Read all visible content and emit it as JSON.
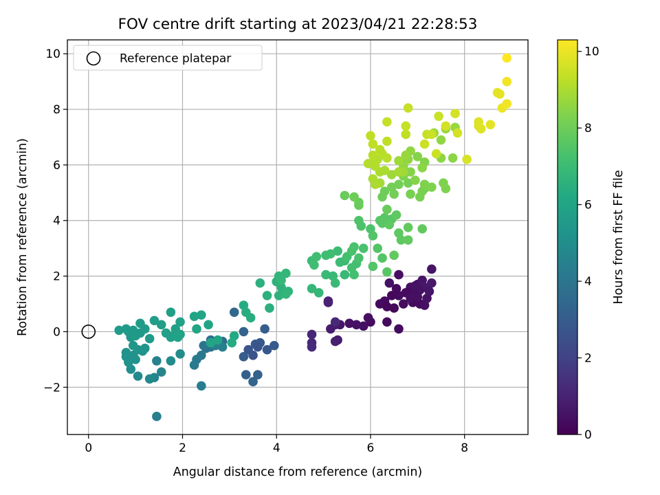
{
  "chart_data": {
    "type": "scatter",
    "title": "FOV centre drift starting at 2023/04/21 22:28:53",
    "xlabel": "Angular distance from reference (arcmin)",
    "ylabel": "Rotation from reference (arcmin)",
    "colorbar_label": "Hours from first FF file",
    "xlim": [
      -0.45,
      9.35
    ],
    "ylim": [
      -3.7,
      10.5
    ],
    "clim": [
      0,
      10.3
    ],
    "x_ticks": [
      0,
      2,
      4,
      6,
      8
    ],
    "y_ticks": [
      -2,
      0,
      2,
      4,
      6,
      8,
      10
    ],
    "colorbar_ticks": [
      0,
      2,
      4,
      6,
      8,
      10
    ],
    "grid": true,
    "colormap": "viridis",
    "legend": {
      "position": "top-left",
      "entries": [
        {
          "label": "Reference platepar",
          "marker": "open-circle"
        }
      ]
    },
    "reference_point": {
      "x": 0,
      "y": 0
    },
    "points": [
      {
        "x": 6.6,
        "y": 2.05,
        "t": 0.4
      },
      {
        "x": 6.4,
        "y": 1.75,
        "t": 0.5
      },
      {
        "x": 6.55,
        "y": 1.55,
        "t": 0.3
      },
      {
        "x": 6.85,
        "y": 1.6,
        "t": 0.4
      },
      {
        "x": 7.0,
        "y": 1.7,
        "t": 0.5
      },
      {
        "x": 7.1,
        "y": 1.85,
        "t": 0.6
      },
      {
        "x": 7.3,
        "y": 2.25,
        "t": 0.6
      },
      {
        "x": 7.3,
        "y": 1.75,
        "t": 0.7
      },
      {
        "x": 7.15,
        "y": 1.6,
        "t": 0.7
      },
      {
        "x": 7.05,
        "y": 1.5,
        "t": 0.5
      },
      {
        "x": 6.9,
        "y": 1.45,
        "t": 0.4
      },
      {
        "x": 6.75,
        "y": 1.4,
        "t": 0.3
      },
      {
        "x": 6.6,
        "y": 1.3,
        "t": 0.3
      },
      {
        "x": 6.45,
        "y": 1.3,
        "t": 0.2
      },
      {
        "x": 6.3,
        "y": 1.1,
        "t": 0.3
      },
      {
        "x": 6.2,
        "y": 1.0,
        "t": 0.3
      },
      {
        "x": 6.35,
        "y": 0.9,
        "t": 0.2
      },
      {
        "x": 6.5,
        "y": 0.85,
        "t": 0.2
      },
      {
        "x": 6.7,
        "y": 1.0,
        "t": 0.3
      },
      {
        "x": 6.9,
        "y": 1.05,
        "t": 0.3
      },
      {
        "x": 7.05,
        "y": 1.0,
        "t": 0.3
      },
      {
        "x": 7.15,
        "y": 0.95,
        "t": 0.4
      },
      {
        "x": 7.2,
        "y": 1.2,
        "t": 0.5
      },
      {
        "x": 7.0,
        "y": 1.25,
        "t": 0.4
      },
      {
        "x": 6.85,
        "y": 1.2,
        "t": 0.4
      },
      {
        "x": 6.95,
        "y": 1.65,
        "t": 0.5
      },
      {
        "x": 7.25,
        "y": 1.45,
        "t": 0.6
      },
      {
        "x": 6.6,
        "y": 0.1,
        "t": 0.3
      },
      {
        "x": 6.35,
        "y": 0.35,
        "t": 0.3
      },
      {
        "x": 6.0,
        "y": 0.35,
        "t": 0.3
      },
      {
        "x": 5.95,
        "y": 0.5,
        "t": 0.4
      },
      {
        "x": 5.85,
        "y": 0.2,
        "t": 0.4
      },
      {
        "x": 5.7,
        "y": 0.25,
        "t": 0.5
      },
      {
        "x": 5.55,
        "y": 0.3,
        "t": 0.5
      },
      {
        "x": 5.35,
        "y": 0.25,
        "t": 0.6
      },
      {
        "x": 5.25,
        "y": 0.25,
        "t": 0.7
      },
      {
        "x": 5.15,
        "y": 0.1,
        "t": 0.8
      },
      {
        "x": 5.3,
        "y": -0.3,
        "t": 0.8
      },
      {
        "x": 5.25,
        "y": -0.35,
        "t": 0.9
      },
      {
        "x": 5.1,
        "y": 1.05,
        "t": 0.9
      },
      {
        "x": 5.1,
        "y": 1.1,
        "t": 1.0
      },
      {
        "x": 4.75,
        "y": -0.1,
        "t": 1.1
      },
      {
        "x": 4.75,
        "y": -0.4,
        "t": 1.2
      },
      {
        "x": 4.75,
        "y": -0.55,
        "t": 1.3
      },
      {
        "x": 5.25,
        "y": 0.35,
        "t": 1.2
      },
      {
        "x": 3.75,
        "y": 0.1,
        "t": 3.0
      },
      {
        "x": 3.65,
        "y": -0.4,
        "t": 2.8
      },
      {
        "x": 3.55,
        "y": -0.45,
        "t": 2.9
      },
      {
        "x": 3.6,
        "y": -0.55,
        "t": 2.7
      },
      {
        "x": 3.5,
        "y": -0.85,
        "t": 2.6
      },
      {
        "x": 3.4,
        "y": -0.65,
        "t": 2.7
      },
      {
        "x": 3.8,
        "y": -0.65,
        "t": 2.8
      },
      {
        "x": 3.95,
        "y": -0.5,
        "t": 2.9
      },
      {
        "x": 3.3,
        "y": -0.9,
        "t": 3.0
      },
      {
        "x": 3.35,
        "y": -1.55,
        "t": 3.1
      },
      {
        "x": 3.6,
        "y": -1.55,
        "t": 3.2
      },
      {
        "x": 3.5,
        "y": -1.8,
        "t": 3.3
      },
      {
        "x": 3.3,
        "y": 0.0,
        "t": 3.3
      },
      {
        "x": 3.1,
        "y": 0.7,
        "t": 3.5
      },
      {
        "x": 2.85,
        "y": -0.35,
        "t": 3.6
      },
      {
        "x": 2.6,
        "y": -0.3,
        "t": 3.8
      },
      {
        "x": 2.6,
        "y": -0.55,
        "t": 3.8
      },
      {
        "x": 2.5,
        "y": -0.6,
        "t": 3.9
      },
      {
        "x": 2.45,
        "y": -0.5,
        "t": 4.0
      },
      {
        "x": 2.4,
        "y": -0.85,
        "t": 4.1
      },
      {
        "x": 2.3,
        "y": -1.0,
        "t": 4.2
      },
      {
        "x": 2.25,
        "y": -1.2,
        "t": 4.2
      },
      {
        "x": 2.4,
        "y": -1.95,
        "t": 4.3
      },
      {
        "x": 1.45,
        "y": -3.05,
        "t": 4.4
      },
      {
        "x": 1.45,
        "y": -1.05,
        "t": 4.5
      },
      {
        "x": 1.55,
        "y": -1.45,
        "t": 4.6
      },
      {
        "x": 1.4,
        "y": -1.65,
        "t": 4.6
      },
      {
        "x": 1.3,
        "y": -1.7,
        "t": 4.8
      },
      {
        "x": 1.05,
        "y": -1.6,
        "t": 4.8
      },
      {
        "x": 1.75,
        "y": -1.05,
        "t": 4.9
      },
      {
        "x": 1.95,
        "y": -0.8,
        "t": 5.0
      },
      {
        "x": 2.7,
        "y": -0.5,
        "t": 4.4
      },
      {
        "x": 2.85,
        "y": -0.55,
        "t": 4.5
      },
      {
        "x": 0.9,
        "y": -1.35,
        "t": 5.1
      },
      {
        "x": 0.85,
        "y": -1.1,
        "t": 5.2
      },
      {
        "x": 0.8,
        "y": -0.9,
        "t": 5.2
      },
      {
        "x": 0.95,
        "y": -0.85,
        "t": 5.2
      },
      {
        "x": 1.05,
        "y": -0.65,
        "t": 5.3
      },
      {
        "x": 1.15,
        "y": -0.7,
        "t": 5.3
      },
      {
        "x": 0.8,
        "y": -0.75,
        "t": 5.2
      },
      {
        "x": 0.95,
        "y": -0.5,
        "t": 5.4
      },
      {
        "x": 0.9,
        "y": -0.2,
        "t": 5.4
      },
      {
        "x": 1.0,
        "y": -0.15,
        "t": 5.5
      },
      {
        "x": 1.1,
        "y": -0.05,
        "t": 5.5
      },
      {
        "x": 0.85,
        "y": 0.0,
        "t": 5.5
      },
      {
        "x": 0.95,
        "y": 0.05,
        "t": 5.5
      },
      {
        "x": 0.8,
        "y": 0.1,
        "t": 5.6
      },
      {
        "x": 0.65,
        "y": 0.05,
        "t": 5.6
      },
      {
        "x": 1.1,
        "y": 0.3,
        "t": 5.6
      },
      {
        "x": 1.2,
        "y": 0.1,
        "t": 5.6
      },
      {
        "x": 1.3,
        "y": -0.25,
        "t": 5.6
      },
      {
        "x": 1.4,
        "y": 0.4,
        "t": 5.7
      },
      {
        "x": 1.55,
        "y": 0.25,
        "t": 5.7
      },
      {
        "x": 1.75,
        "y": 0.7,
        "t": 5.8
      },
      {
        "x": 1.75,
        "y": -0.2,
        "t": 5.8
      },
      {
        "x": 1.8,
        "y": -0.15,
        "t": 5.8
      },
      {
        "x": 1.85,
        "y": 0.1,
        "t": 5.8
      },
      {
        "x": 1.95,
        "y": 0.35,
        "t": 5.9
      },
      {
        "x": 1.95,
        "y": -0.1,
        "t": 5.9
      },
      {
        "x": 1.65,
        "y": -0.05,
        "t": 5.8
      },
      {
        "x": 2.25,
        "y": 0.55,
        "t": 6.0
      },
      {
        "x": 2.4,
        "y": 0.6,
        "t": 6.0
      },
      {
        "x": 2.3,
        "y": 0.1,
        "t": 6.0
      },
      {
        "x": 2.55,
        "y": 0.25,
        "t": 6.0
      },
      {
        "x": 2.6,
        "y": -0.4,
        "t": 6.0
      },
      {
        "x": 2.75,
        "y": -0.3,
        "t": 6.0
      },
      {
        "x": 1.9,
        "y": -0.2,
        "t": 5.9
      },
      {
        "x": 1.2,
        "y": -0.6,
        "t": 5.3
      },
      {
        "x": 1.0,
        "y": -1.0,
        "t": 5.2
      },
      {
        "x": 3.1,
        "y": -0.15,
        "t": 6.2
      },
      {
        "x": 3.05,
        "y": -0.4,
        "t": 6.3
      },
      {
        "x": 3.3,
        "y": 0.95,
        "t": 6.3
      },
      {
        "x": 3.35,
        "y": 0.7,
        "t": 6.4
      },
      {
        "x": 3.45,
        "y": 0.5,
        "t": 6.4
      },
      {
        "x": 3.65,
        "y": 1.75,
        "t": 6.5
      },
      {
        "x": 3.8,
        "y": 1.3,
        "t": 6.5
      },
      {
        "x": 3.85,
        "y": 0.85,
        "t": 6.5
      },
      {
        "x": 4.0,
        "y": 1.8,
        "t": 6.6
      },
      {
        "x": 4.05,
        "y": 1.3,
        "t": 6.6
      },
      {
        "x": 4.1,
        "y": 1.6,
        "t": 6.6
      },
      {
        "x": 4.2,
        "y": 1.35,
        "t": 6.7
      },
      {
        "x": 4.25,
        "y": 1.45,
        "t": 6.7
      },
      {
        "x": 4.05,
        "y": 2.0,
        "t": 6.7
      },
      {
        "x": 4.2,
        "y": 2.1,
        "t": 6.8
      },
      {
        "x": 4.1,
        "y": 1.85,
        "t": 6.8
      },
      {
        "x": 4.75,
        "y": 1.55,
        "t": 6.8
      },
      {
        "x": 4.9,
        "y": 1.4,
        "t": 6.8
      },
      {
        "x": 5.05,
        "y": 2.05,
        "t": 6.9
      },
      {
        "x": 5.2,
        "y": 2.0,
        "t": 6.9
      },
      {
        "x": 5.25,
        "y": 1.75,
        "t": 6.9
      },
      {
        "x": 5.45,
        "y": 2.05,
        "t": 6.9
      },
      {
        "x": 5.35,
        "y": 2.5,
        "t": 7.0
      },
      {
        "x": 5.3,
        "y": 2.9,
        "t": 7.0
      },
      {
        "x": 5.45,
        "y": 2.55,
        "t": 7.0
      },
      {
        "x": 4.75,
        "y": 2.55,
        "t": 7.0
      },
      {
        "x": 4.85,
        "y": 2.7,
        "t": 7.1
      },
      {
        "x": 4.8,
        "y": 2.4,
        "t": 7.1
      },
      {
        "x": 5.05,
        "y": 2.75,
        "t": 7.1
      },
      {
        "x": 5.15,
        "y": 2.8,
        "t": 7.1
      },
      {
        "x": 5.5,
        "y": 2.7,
        "t": 7.2
      },
      {
        "x": 5.6,
        "y": 2.3,
        "t": 7.2
      },
      {
        "x": 5.65,
        "y": 2.05,
        "t": 7.2
      },
      {
        "x": 5.7,
        "y": 2.45,
        "t": 7.2
      },
      {
        "x": 5.75,
        "y": 2.65,
        "t": 7.3
      },
      {
        "x": 5.6,
        "y": 2.9,
        "t": 7.3
      },
      {
        "x": 5.65,
        "y": 3.05,
        "t": 7.3
      },
      {
        "x": 5.85,
        "y": 3.0,
        "t": 7.3
      },
      {
        "x": 5.75,
        "y": 4.0,
        "t": 7.4
      },
      {
        "x": 5.8,
        "y": 3.8,
        "t": 7.4
      },
      {
        "x": 6.0,
        "y": 3.7,
        "t": 7.4
      },
      {
        "x": 6.05,
        "y": 3.45,
        "t": 7.5
      },
      {
        "x": 6.15,
        "y": 3.0,
        "t": 7.5
      },
      {
        "x": 6.05,
        "y": 2.35,
        "t": 7.5
      },
      {
        "x": 6.25,
        "y": 2.65,
        "t": 7.5
      },
      {
        "x": 6.35,
        "y": 2.15,
        "t": 7.6
      },
      {
        "x": 6.25,
        "y": 3.9,
        "t": 7.6
      },
      {
        "x": 6.3,
        "y": 4.1,
        "t": 7.6
      },
      {
        "x": 6.45,
        "y": 4.05,
        "t": 7.6
      },
      {
        "x": 6.4,
        "y": 3.85,
        "t": 7.7
      },
      {
        "x": 6.55,
        "y": 4.2,
        "t": 7.7
      },
      {
        "x": 6.6,
        "y": 3.55,
        "t": 7.7
      },
      {
        "x": 6.65,
        "y": 3.3,
        "t": 7.7
      },
      {
        "x": 6.8,
        "y": 3.3,
        "t": 7.8
      },
      {
        "x": 6.8,
        "y": 3.75,
        "t": 7.8
      },
      {
        "x": 7.1,
        "y": 3.7,
        "t": 7.8
      },
      {
        "x": 6.5,
        "y": 2.75,
        "t": 7.8
      },
      {
        "x": 5.75,
        "y": 4.55,
        "t": 7.9
      },
      {
        "x": 5.75,
        "y": 4.65,
        "t": 7.9
      },
      {
        "x": 6.35,
        "y": 4.4,
        "t": 7.9
      },
      {
        "x": 6.2,
        "y": 4.0,
        "t": 7.6
      },
      {
        "x": 5.45,
        "y": 4.9,
        "t": 7.9
      },
      {
        "x": 5.65,
        "y": 4.85,
        "t": 8.0
      },
      {
        "x": 6.25,
        "y": 4.85,
        "t": 8.0
      },
      {
        "x": 6.3,
        "y": 5.05,
        "t": 8.0
      },
      {
        "x": 6.45,
        "y": 5.2,
        "t": 8.1
      },
      {
        "x": 6.5,
        "y": 4.95,
        "t": 8.1
      },
      {
        "x": 6.6,
        "y": 5.3,
        "t": 8.1
      },
      {
        "x": 6.8,
        "y": 5.35,
        "t": 8.1
      },
      {
        "x": 6.85,
        "y": 4.95,
        "t": 8.2
      },
      {
        "x": 7.05,
        "y": 4.85,
        "t": 8.2
      },
      {
        "x": 7.1,
        "y": 5.05,
        "t": 8.2
      },
      {
        "x": 7.15,
        "y": 5.15,
        "t": 8.2
      },
      {
        "x": 7.3,
        "y": 5.2,
        "t": 8.3
      },
      {
        "x": 7.15,
        "y": 5.3,
        "t": 8.3
      },
      {
        "x": 7.55,
        "y": 5.35,
        "t": 8.3
      },
      {
        "x": 7.6,
        "y": 5.15,
        "t": 8.3
      },
      {
        "x": 6.7,
        "y": 5.6,
        "t": 8.3
      },
      {
        "x": 6.85,
        "y": 5.75,
        "t": 8.4
      },
      {
        "x": 6.95,
        "y": 5.45,
        "t": 8.4
      },
      {
        "x": 7.0,
        "y": 6.3,
        "t": 8.4
      },
      {
        "x": 7.15,
        "y": 6.1,
        "t": 8.4
      },
      {
        "x": 7.1,
        "y": 5.9,
        "t": 8.5
      },
      {
        "x": 7.5,
        "y": 6.25,
        "t": 8.5
      },
      {
        "x": 7.75,
        "y": 6.25,
        "t": 8.5
      },
      {
        "x": 6.7,
        "y": 6.1,
        "t": 8.5
      },
      {
        "x": 6.8,
        "y": 6.2,
        "t": 8.6
      },
      {
        "x": 6.85,
        "y": 6.5,
        "t": 8.6
      },
      {
        "x": 6.7,
        "y": 5.95,
        "t": 8.6
      },
      {
        "x": 7.5,
        "y": 6.9,
        "t": 8.6
      },
      {
        "x": 7.35,
        "y": 7.15,
        "t": 8.7
      },
      {
        "x": 7.6,
        "y": 7.3,
        "t": 8.7
      },
      {
        "x": 7.8,
        "y": 7.35,
        "t": 8.7
      },
      {
        "x": 6.75,
        "y": 6.35,
        "t": 8.7
      },
      {
        "x": 6.6,
        "y": 6.15,
        "t": 8.8
      },
      {
        "x": 6.7,
        "y": 5.75,
        "t": 8.8
      },
      {
        "x": 6.45,
        "y": 5.65,
        "t": 8.8
      },
      {
        "x": 6.6,
        "y": 5.75,
        "t": 8.9
      },
      {
        "x": 6.2,
        "y": 5.35,
        "t": 8.9
      },
      {
        "x": 6.1,
        "y": 5.3,
        "t": 9.0
      },
      {
        "x": 6.05,
        "y": 5.5,
        "t": 9.0
      },
      {
        "x": 6.2,
        "y": 5.75,
        "t": 9.0
      },
      {
        "x": 6.3,
        "y": 5.8,
        "t": 9.0
      },
      {
        "x": 6.1,
        "y": 5.95,
        "t": 9.1
      },
      {
        "x": 6.05,
        "y": 6.1,
        "t": 9.1
      },
      {
        "x": 5.95,
        "y": 6.05,
        "t": 9.1
      },
      {
        "x": 6.15,
        "y": 6.2,
        "t": 9.1
      },
      {
        "x": 6.05,
        "y": 6.35,
        "t": 9.2
      },
      {
        "x": 6.25,
        "y": 6.4,
        "t": 9.2
      },
      {
        "x": 6.35,
        "y": 6.25,
        "t": 9.2
      },
      {
        "x": 6.2,
        "y": 6.55,
        "t": 9.2
      },
      {
        "x": 6.0,
        "y": 7.05,
        "t": 9.3
      },
      {
        "x": 6.05,
        "y": 6.75,
        "t": 9.3
      },
      {
        "x": 6.35,
        "y": 6.85,
        "t": 9.3
      },
      {
        "x": 6.75,
        "y": 7.1,
        "t": 9.3
      },
      {
        "x": 6.75,
        "y": 7.4,
        "t": 9.4
      },
      {
        "x": 6.35,
        "y": 7.55,
        "t": 9.4
      },
      {
        "x": 6.8,
        "y": 8.05,
        "t": 9.4
      },
      {
        "x": 7.2,
        "y": 7.1,
        "t": 9.4
      },
      {
        "x": 7.3,
        "y": 7.1,
        "t": 9.5
      },
      {
        "x": 7.15,
        "y": 6.75,
        "t": 9.5
      },
      {
        "x": 7.4,
        "y": 6.4,
        "t": 9.5
      },
      {
        "x": 7.45,
        "y": 7.75,
        "t": 9.5
      },
      {
        "x": 7.6,
        "y": 7.4,
        "t": 9.6
      },
      {
        "x": 7.8,
        "y": 7.85,
        "t": 9.6
      },
      {
        "x": 7.85,
        "y": 7.15,
        "t": 9.6
      },
      {
        "x": 8.05,
        "y": 6.2,
        "t": 9.7
      },
      {
        "x": 8.3,
        "y": 7.4,
        "t": 9.7
      },
      {
        "x": 8.3,
        "y": 7.55,
        "t": 9.8
      },
      {
        "x": 8.35,
        "y": 7.3,
        "t": 9.8
      },
      {
        "x": 8.55,
        "y": 7.45,
        "t": 9.9
      },
      {
        "x": 8.7,
        "y": 8.6,
        "t": 9.9
      },
      {
        "x": 8.75,
        "y": 8.55,
        "t": 9.9
      },
      {
        "x": 8.8,
        "y": 8.05,
        "t": 10.0
      },
      {
        "x": 8.9,
        "y": 8.2,
        "t": 10.1
      },
      {
        "x": 8.9,
        "y": 9.0,
        "t": 10.1
      },
      {
        "x": 8.9,
        "y": 9.85,
        "t": 10.3
      }
    ]
  }
}
